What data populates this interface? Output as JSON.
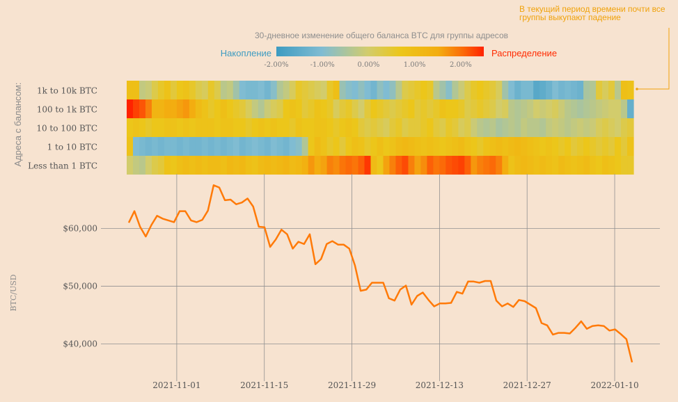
{
  "annotation": "В текущий период времени почти все группы выкупают падение",
  "colors": {
    "background": "#f7e3d0",
    "line": "#ff7a08",
    "accumulation": "#3d9bc1",
    "distribution": "#ff2a00",
    "annotation": "#f0a20a",
    "grid": "#909090"
  },
  "chart_data": [
    {
      "type": "heatmap",
      "title": "30-дневное изменение общего баланса BTC для группы адресов",
      "ylabel": "Адреса с балансом:",
      "legend": {
        "low_label": "Накопление",
        "high_label": "Распределение",
        "range": [
          -2.0,
          2.5
        ],
        "ticks": [
          "-2.00%",
          "-1.00%",
          "0.00%",
          "1.00%",
          "2.00%"
        ],
        "tick_values": [
          -2.0,
          -1.0,
          0.0,
          1.0,
          2.0
        ]
      },
      "rows": [
        "1k to 10k BTC",
        "100 to 1k BTC",
        "10 to 100 BTC",
        "1 to 10 BTC",
        "Less than 1 BTC"
      ],
      "num_days": 81,
      "values": [
        [
          0.7,
          0.7,
          -0.2,
          -0.1,
          0.2,
          0.4,
          0.6,
          0.3,
          0.5,
          0.6,
          0.4,
          0.2,
          0.1,
          0.4,
          0.2,
          -0.3,
          -0.2,
          -0.6,
          -1.0,
          -1.1,
          -1.1,
          -1.0,
          -1.2,
          -0.9,
          -0.4,
          -0.2,
          0.1,
          0.4,
          0.3,
          0.2,
          0.1,
          0.0,
          0.4,
          0.7,
          -0.7,
          -0.9,
          -1.0,
          -0.8,
          -1.0,
          -1.2,
          -0.8,
          -1.0,
          -0.8,
          -0.3,
          0.2,
          0.3,
          0.4,
          0.5,
          0.4,
          -0.3,
          -0.6,
          -0.9,
          -0.4,
          -0.1,
          0.2,
          0.4,
          0.5,
          0.4,
          0.3,
          0.1,
          -0.6,
          -1.0,
          -1.3,
          -1.1,
          -1.1,
          -1.6,
          -1.5,
          -1.3,
          -1.0,
          -1.2,
          -1.1,
          -1.2,
          -1.3,
          -0.5,
          -0.4,
          0.3,
          0.1,
          0.3,
          -0.3,
          0.7,
          0.6
        ],
        [
          2.6,
          2.2,
          2.0,
          1.6,
          1.0,
          1.0,
          1.2,
          1.2,
          1.3,
          1.4,
          1.2,
          0.8,
          0.6,
          0.4,
          0.5,
          0.7,
          0.5,
          0.4,
          0.3,
          0.1,
          -0.2,
          -0.4,
          -0.1,
          0.1,
          0.2,
          0.5,
          0.6,
          0.5,
          0.3,
          0.4,
          0.6,
          0.5,
          0.4,
          0.1,
          0.3,
          0.4,
          0.2,
          0.0,
          0.3,
          0.5,
          0.4,
          0.3,
          0.2,
          0.3,
          0.4,
          0.5,
          0.3,
          0.4,
          0.3,
          0.4,
          0.6,
          0.5,
          0.5,
          0.4,
          0.2,
          0.3,
          0.4,
          0.3,
          0.2,
          0.0,
          0.1,
          -0.3,
          -0.4,
          -0.3,
          -0.2,
          0.0,
          -0.1,
          0.0,
          0.1,
          -0.1,
          -0.3,
          -0.4,
          -0.5,
          -0.4,
          -0.3,
          -0.2,
          -0.1,
          0.0,
          0.0,
          -0.3,
          -1.4
        ],
        [
          0.5,
          0.6,
          0.5,
          0.4,
          0.5,
          0.5,
          0.6,
          0.6,
          0.5,
          0.6,
          0.5,
          0.6,
          0.6,
          0.6,
          0.5,
          0.6,
          0.6,
          0.5,
          0.5,
          0.4,
          0.5,
          0.6,
          0.5,
          0.6,
          0.5,
          0.5,
          0.4,
          0.6,
          0.5,
          0.5,
          0.6,
          0.6,
          0.5,
          0.4,
          0.5,
          0.6,
          0.5,
          0.3,
          0.2,
          0.3,
          0.2,
          0.1,
          0.3,
          0.4,
          0.2,
          0.3,
          0.3,
          0.4,
          0.5,
          0.3,
          0.2,
          0.4,
          0.3,
          0.1,
          0.2,
          -0.1,
          -0.3,
          -0.4,
          -0.3,
          -0.5,
          -0.4,
          -0.3,
          -0.4,
          -0.2,
          -0.3,
          -0.3,
          -0.4,
          -0.2,
          -0.1,
          -0.2,
          -0.3,
          -0.2,
          -0.1,
          -0.2,
          -0.1,
          0.1,
          0.2,
          0.1,
          0.0,
          0.2,
          0.3
        ],
        [
          0.6,
          -1.0,
          -1.1,
          -1.2,
          -1.1,
          -1.2,
          -1.1,
          -1.1,
          -1.2,
          -1.1,
          -1.2,
          -1.2,
          -1.1,
          -1.2,
          -1.1,
          -1.2,
          -1.1,
          -1.0,
          -1.2,
          -1.1,
          -1.0,
          -1.1,
          -1.2,
          -1.0,
          -1.1,
          -1.2,
          -1.0,
          -0.9,
          -0.4,
          0.5,
          0.8,
          0.6,
          0.4,
          0.5,
          0.3,
          0.5,
          0.7,
          0.6,
          0.4,
          0.5,
          0.7,
          0.5,
          0.6,
          0.8,
          0.9,
          0.8,
          0.7,
          0.6,
          0.7,
          0.6,
          0.5,
          0.6,
          0.7,
          0.8,
          0.6,
          0.5,
          0.4,
          0.6,
          0.7,
          0.8,
          0.7,
          0.8,
          0.9,
          0.8,
          0.7,
          0.6,
          0.5,
          0.6,
          0.5,
          0.4,
          0.5,
          0.3,
          0.4,
          0.5,
          0.4,
          0.3,
          0.4,
          0.3,
          0.5,
          0.3,
          0.6
        ],
        [
          0.0,
          -0.2,
          -0.3,
          0.0,
          0.2,
          0.3,
          0.6,
          0.5,
          0.7,
          0.8,
          0.7,
          0.8,
          0.7,
          0.8,
          0.8,
          0.7,
          0.9,
          0.8,
          0.9,
          0.7,
          0.6,
          0.8,
          0.9,
          0.8,
          0.9,
          1.0,
          0.8,
          0.9,
          1.1,
          1.4,
          1.2,
          1.3,
          1.6,
          1.5,
          1.7,
          1.8,
          1.7,
          1.9,
          2.3,
          0.8,
          0.5,
          1.3,
          1.6,
          1.9,
          2.1,
          1.6,
          1.3,
          1.5,
          1.9,
          1.7,
          1.8,
          2.0,
          2.1,
          2.2,
          1.9,
          1.4,
          1.6,
          1.7,
          1.8,
          1.6,
          1.2,
          0.6,
          0.8,
          0.9,
          0.8,
          0.7,
          0.8,
          0.7,
          0.6,
          0.8,
          0.7,
          0.6,
          0.7,
          0.8,
          0.6,
          0.5,
          0.7,
          0.6,
          0.5,
          0.4,
          0.4
        ]
      ]
    },
    {
      "type": "line",
      "ylabel": "BTC/USD",
      "ylim": [
        34500,
        68500
      ],
      "yticks": [
        40000,
        50000,
        60000
      ],
      "ytick_labels": [
        "$40,000",
        "$50,000",
        "$60,000"
      ],
      "xticks": [
        "2021-11-01",
        "2021-11-15",
        "2021-11-29",
        "2021-12-13",
        "2021-12-27",
        "2022-01-10"
      ],
      "xtick_day_index": [
        8,
        22,
        36,
        50,
        64,
        78
      ],
      "x_start": "2021-10-24",
      "values": [
        61000,
        63000,
        60300,
        58600,
        60600,
        62200,
        61700,
        61400,
        61100,
        63000,
        63000,
        61400,
        61100,
        61500,
        63100,
        67500,
        67100,
        64900,
        65000,
        64200,
        64500,
        65200,
        63800,
        60300,
        60200,
        56800,
        58100,
        59800,
        59000,
        56500,
        57700,
        57300,
        59000,
        53800,
        54700,
        57300,
        57800,
        57200,
        57200,
        56500,
        53600,
        49200,
        49400,
        50600,
        50600,
        50600,
        47900,
        47500,
        49400,
        50100,
        46800,
        48300,
        48900,
        47600,
        46500,
        47000,
        47000,
        47100,
        49000,
        48700,
        50800,
        50800,
        50600,
        50900,
        50900,
        47500,
        46500,
        47000,
        46400,
        47600,
        47400,
        46800,
        46200,
        43600,
        43200,
        41600,
        41900,
        41900,
        41800,
        42800,
        43900,
        42600,
        43100,
        43200,
        43100,
        42300,
        42500,
        41700,
        40800,
        36800
      ]
    }
  ]
}
